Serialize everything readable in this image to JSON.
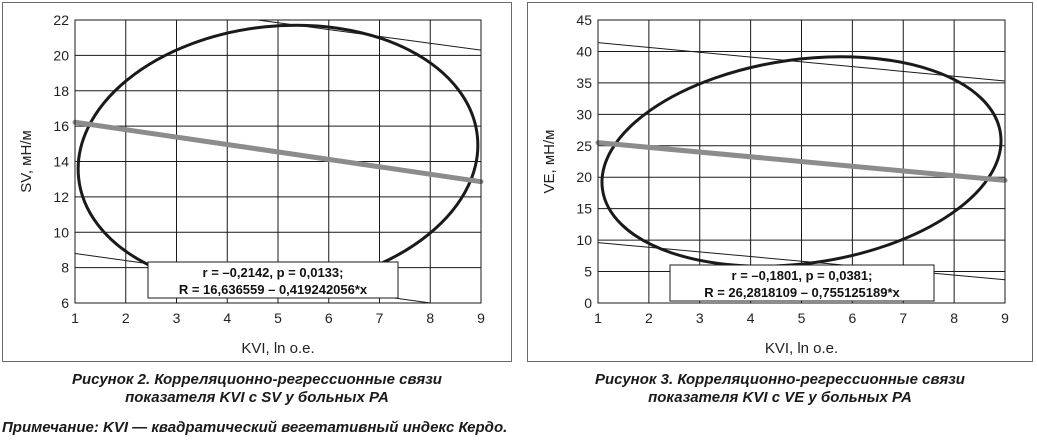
{
  "chart_data": [
    {
      "type": "scatter",
      "xlabel": "KVI, ln о.е.",
      "ylabel": "SV, мН/м",
      "xlim": [
        1,
        9
      ],
      "ylim": [
        6,
        22
      ],
      "xticks": [
        1,
        2,
        3,
        4,
        5,
        6,
        7,
        8,
        9
      ],
      "yticks": [
        6,
        8,
        10,
        12,
        14,
        16,
        18,
        20,
        22
      ],
      "grid": true,
      "regression_line": {
        "x": [
          1,
          9
        ],
        "y": [
          16.22,
          12.86
        ]
      },
      "confidence_bounds": [
        {
          "x": [
            4.6,
            9
          ],
          "y": [
            22,
            20.3
          ]
        },
        {
          "x": [
            1,
            8
          ],
          "y": [
            8.8,
            6
          ]
        }
      ],
      "ellipse": {
        "center": [
          5,
          14.25
        ],
        "semi_axis_x": 3.95,
        "semi_axis_y": 7.4,
        "rotation_deg": -6
      },
      "annotation": [
        "r = –0,2142, р = 0,0133;",
        "R = 16,636559 – 0,419242056*x"
      ]
    },
    {
      "type": "scatter",
      "xlabel": "KVI, ln о.е.",
      "ylabel": "VE, мН/м",
      "xlim": [
        1,
        9
      ],
      "ylim": [
        0,
        45
      ],
      "xticks": [
        1,
        2,
        3,
        4,
        5,
        6,
        7,
        8,
        9
      ],
      "yticks": [
        0,
        5,
        10,
        15,
        20,
        25,
        30,
        35,
        40,
        45
      ],
      "grid": true,
      "regression_line": {
        "x": [
          1,
          9
        ],
        "y": [
          25.5,
          19.5
        ]
      },
      "confidence_bounds": [
        {
          "x": [
            1,
            9
          ],
          "y": [
            41.4,
            35.3
          ]
        },
        {
          "x": [
            1,
            9
          ],
          "y": [
            9.6,
            3.7
          ]
        }
      ],
      "ellipse": {
        "center": [
          5,
          22.5
        ],
        "semi_axis_x": 3.95,
        "semi_axis_y": 16.2,
        "rotation_deg": -8
      },
      "annotation": [
        "r = –0,1801, р = 0,0381;",
        "R = 26,2818109 – 0,755125189*x"
      ]
    }
  ],
  "captions": {
    "left": [
      "Рисунок 2. Корреляционно-регрессионные связи",
      "показателя KVI с SV у больных РА"
    ],
    "right": [
      "Рисунок 3. Корреляционно-регрессионные связи",
      "показателя KVI с VE у больных РА"
    ]
  },
  "note": "Примечание: KVI — квадратический вегетативный индекс Кердо.",
  "colors": {
    "regression": "#8c8c8c",
    "ellipse": "#1a1a1a",
    "grid": "#1a1a1a",
    "frame": "#6a6a6a"
  }
}
